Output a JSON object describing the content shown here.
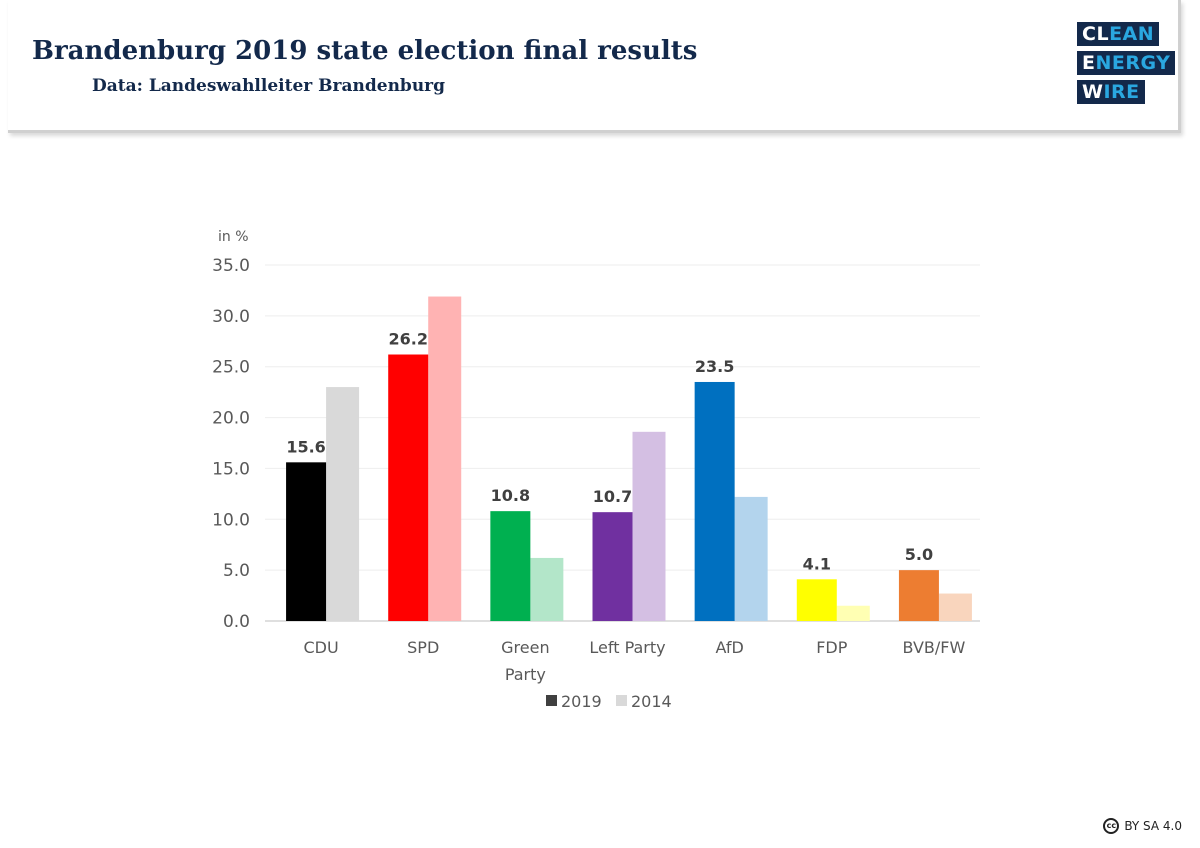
{
  "header": {
    "title": "Brandenburg 2019 state election final results",
    "subtitle": "Data: Landeswahlleiter Brandenburg"
  },
  "logo": {
    "lines": [
      [
        "CL",
        "EAN"
      ],
      [
        "E",
        "NERGY"
      ],
      [
        "W",
        "IRE"
      ]
    ]
  },
  "license": {
    "icon": "creative-commons-icon",
    "label": "BY SA 4.0",
    "cc": "cc"
  },
  "chart_data": {
    "type": "bar",
    "ylabel": "in %",
    "ylim": [
      0,
      35
    ],
    "yticks": [
      "0.0",
      "5.0",
      "10.0",
      "15.0",
      "20.0",
      "25.0",
      "30.0",
      "35.0"
    ],
    "grid": true,
    "legend_position": "bottom",
    "categories": [
      [
        "CDU"
      ],
      [
        "SPD"
      ],
      [
        "Green",
        "Party"
      ],
      [
        "Left  Party"
      ],
      [
        "AfD"
      ],
      [
        "FDP"
      ],
      [
        "BVB/FW"
      ]
    ],
    "series": [
      {
        "name": "2019",
        "values": [
          15.6,
          26.2,
          10.8,
          10.7,
          23.5,
          4.1,
          5.0
        ],
        "labels": [
          "15.6",
          "26.2",
          "10.8",
          "10.7",
          "23.5",
          "4.1",
          "5.0"
        ],
        "colors": [
          "#000000",
          "#ff0000",
          "#00b050",
          "#7030a0",
          "#0070c0",
          "#ffff00",
          "#ed7d31"
        ],
        "legend_color": "#404040"
      },
      {
        "name": "2014",
        "values": [
          23.0,
          31.9,
          6.2,
          18.6,
          12.2,
          1.5,
          2.7
        ],
        "colors": [
          "#d9d9d9",
          "#ffb3b3",
          "#b3e6c9",
          "#d4bfe3",
          "#b3d4ed",
          "#ffffb3",
          "#f9d5bd"
        ],
        "legend_color": "#d9d9d9"
      }
    ]
  }
}
